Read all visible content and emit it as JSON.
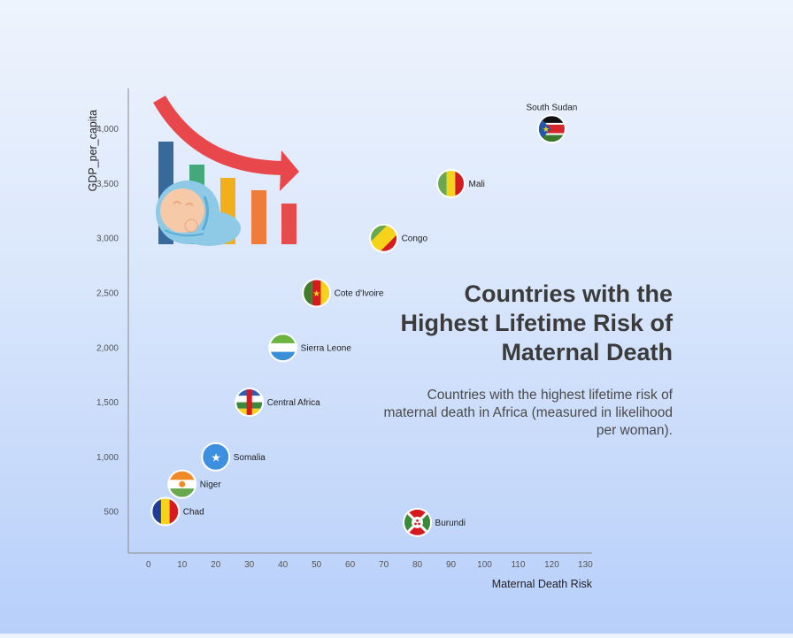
{
  "title": "Countries with the Highest Lifetime Risk of Maternal Death",
  "subtitle": "Countries with the highest lifetime risk of maternal death in Africa (measured in likelihood per woman).",
  "chart_data": {
    "type": "scatter",
    "title": "Countries with the Highest Lifetime Risk of Maternal Death",
    "subtitle": "Countries with the highest lifetime risk of maternal death in Africa (measured in likelihood per woman).",
    "xlabel": "Maternal Death Risk",
    "ylabel": "GDP_per_capita",
    "xlim": [
      -6,
      132
    ],
    "ylim": [
      120,
      4370
    ],
    "x_ticks": [
      0,
      10,
      20,
      30,
      40,
      50,
      60,
      70,
      80,
      90,
      100,
      110,
      120,
      130
    ],
    "y_ticks": [
      500,
      1000,
      1500,
      2000,
      2500,
      3000,
      3500,
      4000
    ],
    "grid": false,
    "points": [
      {
        "label": "South Sudan",
        "x": 120,
        "y": 4000,
        "flag": "south-sudan"
      },
      {
        "label": "Mali",
        "x": 90,
        "y": 3500,
        "flag": "mali"
      },
      {
        "label": "Congo",
        "x": 70,
        "y": 3000,
        "flag": "congo"
      },
      {
        "label": "Cote d'Ivoire",
        "x": 50,
        "y": 2500,
        "flag": "cameroon-style"
      },
      {
        "label": "Sierra Leone",
        "x": 40,
        "y": 2000,
        "flag": "sierra-leone"
      },
      {
        "label": "Central Africa",
        "x": 30,
        "y": 1500,
        "flag": "central-african-republic"
      },
      {
        "label": "Somalia",
        "x": 20,
        "y": 1000,
        "flag": "somalia"
      },
      {
        "label": "Niger",
        "x": 10,
        "y": 750,
        "flag": "niger"
      },
      {
        "label": "Chad",
        "x": 5,
        "y": 500,
        "flag": "chad"
      },
      {
        "label": "Burundi",
        "x": 80,
        "y": 400,
        "flag": "burundi"
      }
    ]
  },
  "illustration": {
    "icon": "declining-bar-chart-with-baby-icon",
    "colors": {
      "bars": [
        "#37699b",
        "#45a87a",
        "#f3ae1b",
        "#ee7c3a",
        "#e74c4c"
      ],
      "arrow": "#e8474c",
      "baby_blanket": "#8ecae6",
      "baby_skin": "#f6c9a8"
    }
  }
}
